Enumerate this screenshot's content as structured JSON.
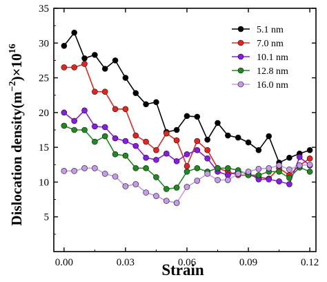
{
  "chart_data": {
    "type": "line",
    "xlabel": "Strain",
    "ylabel": {
      "main": "Dislocation density(m",
      "exp1": "−2",
      "mid": ")×10",
      "exp2": "16"
    },
    "xlim": [
      -0.005,
      0.123
    ],
    "ylim": [
      0,
      35
    ],
    "xticks": [
      "0.00",
      "0.03",
      "0.06",
      "0.09",
      "0.12"
    ],
    "xtick_values": [
      0,
      0.03,
      0.06,
      0.09,
      0.12
    ],
    "yticks": [
      "5",
      "10",
      "15",
      "20",
      "25",
      "30",
      "35"
    ],
    "ytick_values": [
      5,
      10,
      15,
      20,
      25,
      30,
      35
    ],
    "grid": false,
    "legend_position": "top-right",
    "x": [
      0,
      0.005,
      0.01,
      0.015,
      0.02,
      0.025,
      0.03,
      0.035,
      0.04,
      0.045,
      0.05,
      0.055,
      0.06,
      0.065,
      0.07,
      0.075,
      0.08,
      0.085,
      0.09,
      0.095,
      0.1,
      0.105,
      0.11,
      0.115,
      0.12
    ],
    "series": [
      {
        "name": "5.1 nm",
        "color": "#000000",
        "values": [
          29.6,
          31.5,
          27.8,
          28.3,
          26.3,
          27.5,
          25.0,
          22.8,
          21.2,
          21.5,
          17.2,
          17.5,
          19.5,
          19.4,
          16.1,
          18.5,
          16.7,
          16.4,
          15.7,
          14.6,
          16.6,
          12.8,
          13.5,
          14.1,
          14.6
        ]
      },
      {
        "name": "7.0 nm",
        "color": "#e8231c",
        "values": [
          26.5,
          26.5,
          27.0,
          23.0,
          23.0,
          20.5,
          20.5,
          16.7,
          15.8,
          14.6,
          17.0,
          16.0,
          12.3,
          15.9,
          14.6,
          12.0,
          11.5,
          11.0,
          11.0,
          10.7,
          10.5,
          12.0,
          11.0,
          12.4,
          13.4
        ]
      },
      {
        "name": "10.1 nm",
        "color": "#8a1be6",
        "values": [
          20.0,
          18.8,
          20.3,
          18.0,
          17.9,
          16.3,
          15.9,
          15.2,
          13.5,
          13.2,
          14.1,
          13.0,
          14.0,
          14.6,
          13.4,
          11.5,
          11.0,
          11.5,
          11.3,
          10.4,
          10.4,
          10.1,
          9.7,
          13.6,
          12.4
        ]
      },
      {
        "name": "12.8 nm",
        "color": "#1f8a1f",
        "values": [
          18.1,
          17.5,
          17.5,
          15.8,
          16.6,
          14.0,
          13.8,
          12.0,
          12.0,
          10.7,
          9.0,
          9.2,
          11.5,
          12.0,
          11.5,
          12.0,
          12.0,
          11.7,
          11.0,
          11.0,
          11.5,
          11.5,
          10.6,
          12.1,
          11.5
        ]
      },
      {
        "name": "16.0 nm",
        "color": "#c59be8",
        "values": [
          11.6,
          11.6,
          12.0,
          12.0,
          11.2,
          10.8,
          9.4,
          9.7,
          8.5,
          8.0,
          7.3,
          7.0,
          9.3,
          10.2,
          11.2,
          10.3,
          10.3,
          11.2,
          11.5,
          11.9,
          12.0,
          12.4,
          11.8,
          12.4,
          12.5
        ]
      }
    ]
  }
}
